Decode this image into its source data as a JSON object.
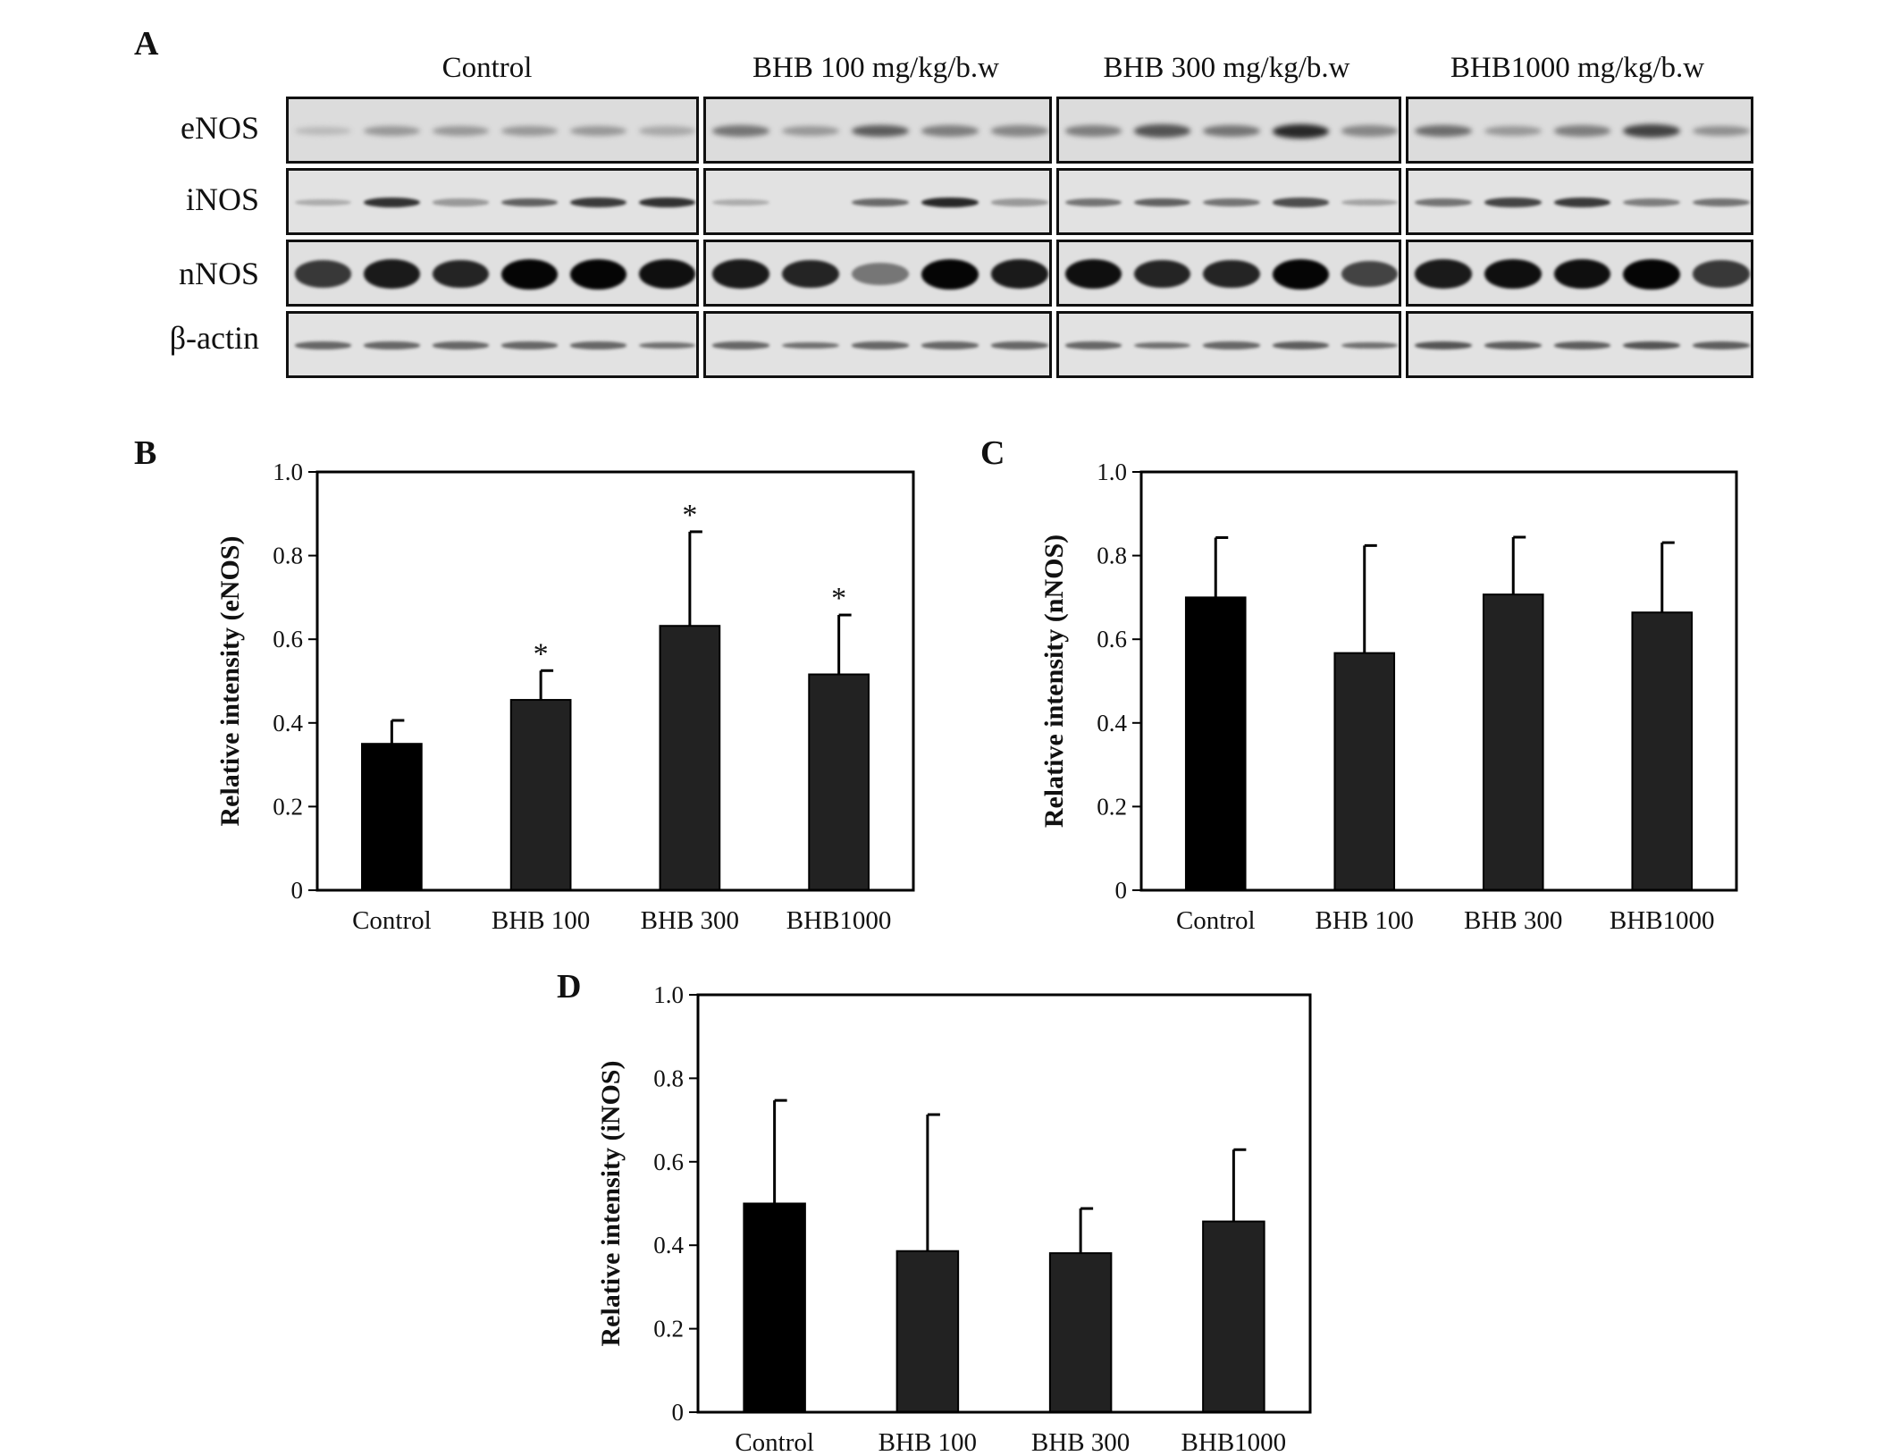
{
  "figure": {
    "panels": {
      "a": "A",
      "b": "B",
      "c": "C",
      "d": "D"
    },
    "blot": {
      "groups": [
        "Control",
        "BHB 100 mg/kg/b.w",
        "BHB 300 mg/kg/b.w",
        "BHB1000 mg/kg/b.w"
      ],
      "rows": [
        "eNOS",
        "iNOS",
        "nNOS",
        "β-actin"
      ],
      "lanes_per_group": [
        6,
        5,
        5,
        5
      ],
      "band_intensity": {
        "eNOS": [
          [
            0.15,
            0.35,
            0.35,
            0.35,
            0.35,
            0.25
          ],
          [
            0.55,
            0.35,
            0.7,
            0.5,
            0.45
          ],
          [
            0.5,
            0.75,
            0.55,
            1.0,
            0.45
          ],
          [
            0.6,
            0.35,
            0.5,
            0.85,
            0.4
          ]
        ],
        "iNOS": [
          [
            0.2,
            0.85,
            0.3,
            0.6,
            0.8,
            0.85
          ],
          [
            0.2,
            0.0,
            0.55,
            0.9,
            0.3
          ],
          [
            0.5,
            0.6,
            0.5,
            0.7,
            0.25
          ],
          [
            0.5,
            0.75,
            0.8,
            0.45,
            0.5
          ]
        ],
        "nNOS": [
          [
            0.75,
            0.9,
            0.85,
            1.0,
            1.0,
            0.95
          ],
          [
            0.9,
            0.85,
            0.45,
            1.0,
            0.9
          ],
          [
            0.95,
            0.85,
            0.85,
            1.0,
            0.7
          ],
          [
            0.9,
            0.95,
            0.95,
            1.0,
            0.75
          ]
        ],
        "β-actin": [
          [
            0.6,
            0.6,
            0.6,
            0.6,
            0.6,
            0.55
          ],
          [
            0.6,
            0.55,
            0.6,
            0.6,
            0.6
          ],
          [
            0.6,
            0.55,
            0.6,
            0.65,
            0.55
          ],
          [
            0.7,
            0.65,
            0.65,
            0.7,
            0.65
          ]
        ]
      }
    }
  },
  "chart_data": [
    {
      "panel": "B",
      "type": "bar",
      "categories": [
        "Control",
        "BHB 100",
        "BHB 300",
        "BHB1000"
      ],
      "values": [
        0.35,
        0.455,
        0.632,
        0.516
      ],
      "error": [
        0.056,
        0.07,
        0.225,
        0.142
      ],
      "significance": [
        "",
        "*",
        "*",
        "*"
      ],
      "bar_colors": [
        "#000000",
        "#222222",
        "#222222",
        "#222222"
      ],
      "ylabel": "Relative intensity (eNOS)",
      "ylim": [
        0,
        1.0
      ],
      "yticks": [
        "0",
        "0.2",
        "0.4",
        "0.6",
        "0.8",
        "1.0"
      ],
      "grid": false
    },
    {
      "panel": "C",
      "type": "bar",
      "categories": [
        "Control",
        "BHB 100",
        "BHB 300",
        "BHB1000"
      ],
      "values": [
        0.7,
        0.567,
        0.707,
        0.664
      ],
      "error": [
        0.143,
        0.257,
        0.137,
        0.167
      ],
      "significance": [
        "",
        "",
        "",
        ""
      ],
      "bar_colors": [
        "#000000",
        "#222222",
        "#222222",
        "#222222"
      ],
      "ylabel": "Relative intensity (nNOS)",
      "ylim": [
        0,
        1.0
      ],
      "yticks": [
        "0",
        "0.2",
        "0.4",
        "0.6",
        "0.8",
        "1.0"
      ],
      "grid": false
    },
    {
      "panel": "D",
      "type": "bar",
      "categories": [
        "Control",
        "BHB 100",
        "BHB 300",
        "BHB1000"
      ],
      "values": [
        0.5,
        0.386,
        0.381,
        0.457
      ],
      "error": [
        0.247,
        0.327,
        0.107,
        0.172
      ],
      "significance": [
        "",
        "",
        "",
        ""
      ],
      "bar_colors": [
        "#000000",
        "#222222",
        "#222222",
        "#222222"
      ],
      "ylabel": "Relative intensity  (iNOS)",
      "ylim": [
        0,
        1.0
      ],
      "yticks": [
        "0",
        "0.2",
        "0.4",
        "0.6",
        "0.8",
        "1.0"
      ],
      "grid": false
    }
  ]
}
